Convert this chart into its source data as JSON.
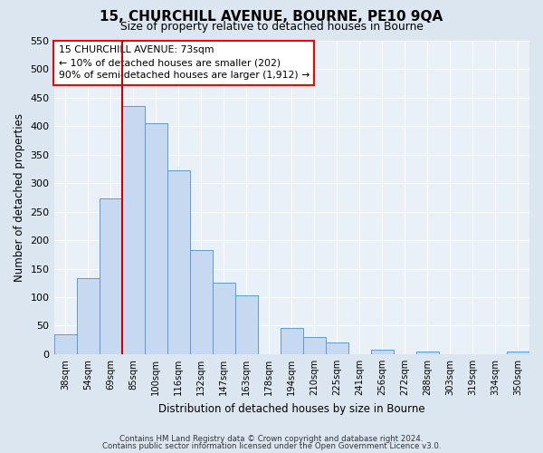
{
  "title": "15, CHURCHILL AVENUE, BOURNE, PE10 9QA",
  "subtitle": "Size of property relative to detached houses in Bourne",
  "xlabel": "Distribution of detached houses by size in Bourne",
  "ylabel": "Number of detached properties",
  "bar_labels": [
    "38sqm",
    "54sqm",
    "69sqm",
    "85sqm",
    "100sqm",
    "116sqm",
    "132sqm",
    "147sqm",
    "163sqm",
    "178sqm",
    "194sqm",
    "210sqm",
    "225sqm",
    "241sqm",
    "256sqm",
    "272sqm",
    "288sqm",
    "303sqm",
    "319sqm",
    "334sqm",
    "350sqm"
  ],
  "bar_values": [
    35,
    133,
    273,
    435,
    405,
    323,
    183,
    126,
    103,
    0,
    46,
    30,
    20,
    0,
    8,
    0,
    5,
    0,
    0,
    0,
    5
  ],
  "bar_color": "#c6d9f0",
  "bar_edge_color": "#5b9bd5",
  "annotation_line1": "15 CHURCHILL AVENUE: 73sqm",
  "annotation_line2": "← 10% of detached houses are smaller (202)",
  "annotation_line3": "90% of semi-detached houses are larger (1,912) →",
  "vline_index": 2,
  "vline_color": "#cc0000",
  "ylim": [
    0,
    550
  ],
  "yticks": [
    0,
    50,
    100,
    150,
    200,
    250,
    300,
    350,
    400,
    450,
    500,
    550
  ],
  "footer_line1": "Contains HM Land Registry data © Crown copyright and database right 2024.",
  "footer_line2": "Contains public sector information licensed under the Open Government Licence v3.0.",
  "bg_color": "#dce6f1",
  "plot_bg_color": "#eaf0f8"
}
